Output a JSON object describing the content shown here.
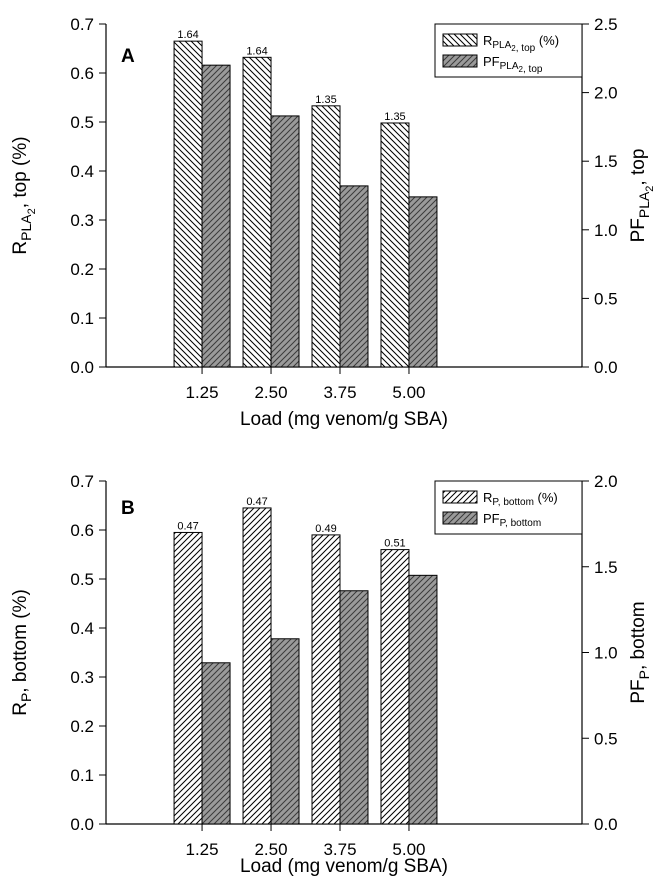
{
  "chart_data": [
    {
      "type": "bar",
      "panel": "A",
      "categories": [
        "1.25",
        "2.50",
        "3.75",
        "5.00"
      ],
      "xlabel": "Load (mg venom/g SBA)",
      "ylabel_left": {
        "main": "R",
        "sub": "PLA",
        "sub2": "2",
        "tail": ", top (%)"
      },
      "ylabel_right": {
        "main": "PF",
        "sub": "PLA",
        "sub2": "2",
        "tail": ", top"
      },
      "ylim_left": [
        0,
        0.7
      ],
      "ylim_right": [
        0,
        2.5
      ],
      "left_ticks": [
        "0.0",
        "0.1",
        "0.2",
        "0.3",
        "0.4",
        "0.5",
        "0.6",
        "0.7"
      ],
      "right_ticks": [
        "0.0",
        "0.5",
        "1.0",
        "1.5",
        "2.0",
        "2.5"
      ],
      "series": [
        {
          "name": "R_PLA2, top (%)",
          "axis": "left",
          "pattern": "backslash",
          "values": [
            0.665,
            0.632,
            0.533,
            0.498
          ],
          "data_labels": [
            "1.64",
            "1.64",
            "1.35",
            "1.35"
          ]
        },
        {
          "name": "PF_PLA2, top",
          "axis": "right",
          "pattern": "slash-gray",
          "values": [
            2.2,
            1.83,
            1.32,
            1.24
          ]
        }
      ],
      "legend": {
        "position": "top-right",
        "items": [
          {
            "main": "R",
            "sub": "PLA",
            "sub2": "2",
            "tail": ", top",
            "suffix": " (%)",
            "pattern": "backslash"
          },
          {
            "main": "PF",
            "sub": "PLA",
            "sub2": "2",
            "tail": ", top",
            "suffix": "",
            "pattern": "slash-gray"
          }
        ]
      }
    },
    {
      "type": "bar",
      "panel": "B",
      "categories": [
        "1.25",
        "2.50",
        "3.75",
        "5.00"
      ],
      "xlabel": "Load (mg venom/g SBA)",
      "ylabel_left": {
        "main": "R",
        "sub": "P",
        "sub2": "",
        "tail": ", bottom (%)"
      },
      "ylabel_right": {
        "main": "PF",
        "sub": "P",
        "sub2": "",
        "tail": ", bottom"
      },
      "ylim_left": [
        0,
        0.7
      ],
      "ylim_right": [
        0,
        2.0
      ],
      "left_ticks": [
        "0.0",
        "0.1",
        "0.2",
        "0.3",
        "0.4",
        "0.5",
        "0.6",
        "0.7"
      ],
      "right_ticks": [
        "0.0",
        "0.5",
        "1.0",
        "1.5",
        "2.0"
      ],
      "series": [
        {
          "name": "R_P, bottom (%)",
          "axis": "left",
          "pattern": "slash",
          "values": [
            0.595,
            0.645,
            0.59,
            0.56
          ],
          "data_labels": [
            "0.47",
            "0.47",
            "0.49",
            "0.51"
          ]
        },
        {
          "name": "PF_P, bottom",
          "axis": "right",
          "pattern": "slash-gray",
          "values": [
            0.94,
            1.08,
            1.36,
            1.45
          ]
        }
      ],
      "legend": {
        "position": "top-right",
        "items": [
          {
            "main": "R",
            "sub": "P",
            "sub2": "",
            "tail": ", bottom",
            "suffix": " (%)",
            "pattern": "slash"
          },
          {
            "main": "PF",
            "sub": "P",
            "sub2": "",
            "tail": ", bottom",
            "suffix": "",
            "pattern": "slash-gray"
          }
        ]
      }
    }
  ]
}
